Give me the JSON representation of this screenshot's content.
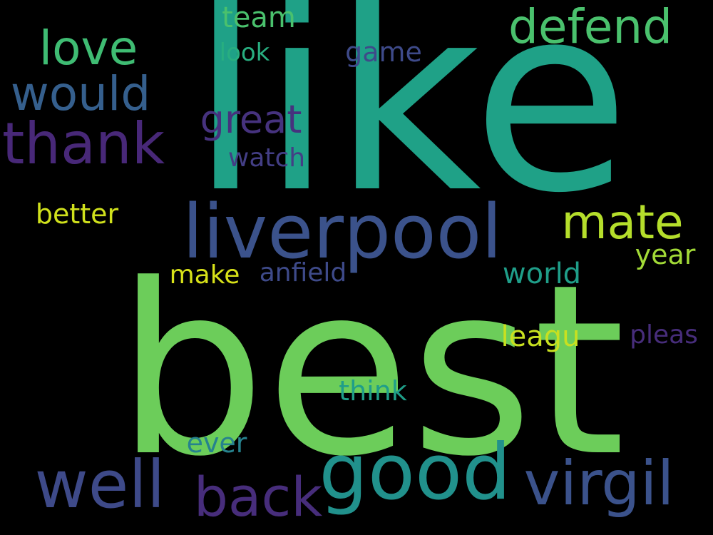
{
  "palette": {
    "background": "#000000"
  },
  "words": [
    {
      "id": "like",
      "text": "like",
      "color": "#1fa187"
    },
    {
      "id": "best",
      "text": "best",
      "color": "#6ccd5a"
    },
    {
      "id": "liverpool",
      "text": "liverpool",
      "color": "#3b528b"
    },
    {
      "id": "good",
      "text": "good",
      "color": "#21918c"
    },
    {
      "id": "well",
      "text": "well",
      "color": "#3e4a89"
    },
    {
      "id": "virgil",
      "text": "virgil",
      "color": "#3b528b"
    },
    {
      "id": "back",
      "text": "back",
      "color": "#472d7b"
    },
    {
      "id": "thank",
      "text": "thank",
      "color": "#482878"
    },
    {
      "id": "would",
      "text": "would",
      "color": "#355f8d"
    },
    {
      "id": "love",
      "text": "love",
      "color": "#3fbc73"
    },
    {
      "id": "defend",
      "text": "defend",
      "color": "#4ac16d"
    },
    {
      "id": "mate",
      "text": "mate",
      "color": "#b5de2b"
    },
    {
      "id": "great",
      "text": "great",
      "color": "#46327e"
    },
    {
      "id": "team",
      "text": "team",
      "color": "#4ac16d"
    },
    {
      "id": "game",
      "text": "game",
      "color": "#3e4a89"
    },
    {
      "id": "look",
      "text": "look",
      "color": "#28ae80"
    },
    {
      "id": "watch",
      "text": "watch",
      "color": "#433e85"
    },
    {
      "id": "better",
      "text": "better",
      "color": "#d0e11c"
    },
    {
      "id": "year",
      "text": "year",
      "color": "#a2da37"
    },
    {
      "id": "world",
      "text": "world",
      "color": "#1f9e89"
    },
    {
      "id": "make",
      "text": "make",
      "color": "#d8e219"
    },
    {
      "id": "anfield",
      "text": "anfield",
      "color": "#3e4a89"
    },
    {
      "id": "leagu",
      "text": "leagu",
      "color": "#c8e020"
    },
    {
      "id": "pleas",
      "text": "pleas",
      "color": "#472d7b"
    },
    {
      "id": "think",
      "text": "think",
      "color": "#1f9e89"
    },
    {
      "id": "ever",
      "text": "ever",
      "color": "#26828e"
    }
  ]
}
